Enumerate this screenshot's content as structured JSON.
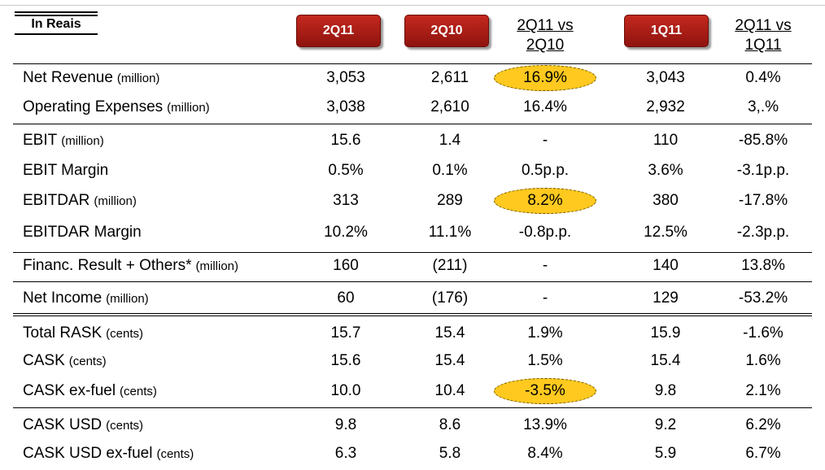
{
  "header": {
    "units_label": "In Reais",
    "col_2q11": "2Q11",
    "col_2q10": "2Q10",
    "col_cmp1_line1": "2Q11 vs",
    "col_cmp1_line2": "2Q10",
    "col_1q11": "1Q11",
    "col_cmp2_line1": "2Q11 vs",
    "col_cmp2_line2": "1Q11"
  },
  "rows": [
    {
      "label": "Net Revenue",
      "unit": "(million)",
      "v2q11": "3,053",
      "v2q10": "2,611",
      "cmp1": "16.9%",
      "v1q11": "3,043",
      "cmp2": "0.4%",
      "highlight": true
    },
    {
      "label": "Operating Expenses",
      "unit": "(million)",
      "v2q11": "3,038",
      "v2q10": "2,610",
      "cmp1": "16.4%",
      "v1q11": "2,932",
      "cmp2": "3,.%"
    },
    {
      "label": "EBIT",
      "unit": "(million)",
      "v2q11": "15.6",
      "v2q10": "1.4",
      "cmp1": "-",
      "v1q11": "110",
      "cmp2": "-85.8%"
    },
    {
      "label": "EBIT Margin",
      "unit": "",
      "v2q11": "0.5%",
      "v2q10": "0.1%",
      "cmp1": "0.5p.p.",
      "v1q11": "3.6%",
      "cmp2": "-3.1p.p."
    },
    {
      "label": "EBITDAR",
      "unit": "(million)",
      "v2q11": "313",
      "v2q10": "289",
      "cmp1": "8.2%",
      "v1q11": "380",
      "cmp2": "-17.8%",
      "highlight": true
    },
    {
      "label": "EBITDAR Margin",
      "unit": "",
      "v2q11": "10.2%",
      "v2q10": "11.1%",
      "cmp1": "-0.8p.p.",
      "v1q11": "12.5%",
      "cmp2": "-2.3p.p."
    },
    {
      "label": "Financ. Result + Others*",
      "unit": "(million)",
      "v2q11": "160",
      "v2q10": "(211)",
      "cmp1": "-",
      "v1q11": "140",
      "cmp2": "13.8%"
    },
    {
      "label": "Net Income",
      "unit": "(million)",
      "v2q11": "60",
      "v2q10": "(176)",
      "cmp1": "-",
      "v1q11": "129",
      "cmp2": "-53.2%"
    },
    {
      "label": "Total RASK",
      "unit": "(cents)",
      "v2q11": "15.7",
      "v2q10": "15.4",
      "cmp1": "1.9%",
      "v1q11": "15.9",
      "cmp2": "-1.6%"
    },
    {
      "label": "CASK",
      "unit": "(cents)",
      "v2q11": "15.6",
      "v2q10": "15.4",
      "cmp1": "1.5%",
      "v1q11": "15.4",
      "cmp2": "1.6%"
    },
    {
      "label": "CASK ex-fuel",
      "unit": "(cents)",
      "v2q11": "10.0",
      "v2q10": "10.4",
      "cmp1": "-3.5%",
      "v1q11": "9.8",
      "cmp2": "2.1%",
      "highlight": true
    },
    {
      "label": "CASK USD",
      "unit": "(cents)",
      "v2q11": "9.8",
      "v2q10": "8.6",
      "cmp1": "13.9%",
      "v1q11": "9.2",
      "cmp2": "6.2%"
    },
    {
      "label": "CASK USD ex-fuel",
      "unit": "(cents)",
      "v2q11": "6.3",
      "v2q10": "5.8",
      "cmp1": "8.4%",
      "v1q11": "5.9",
      "cmp2": "6.7%"
    }
  ],
  "colors": {
    "header_red": "#b31f16",
    "highlight_yellow": "#ffc91f"
  }
}
